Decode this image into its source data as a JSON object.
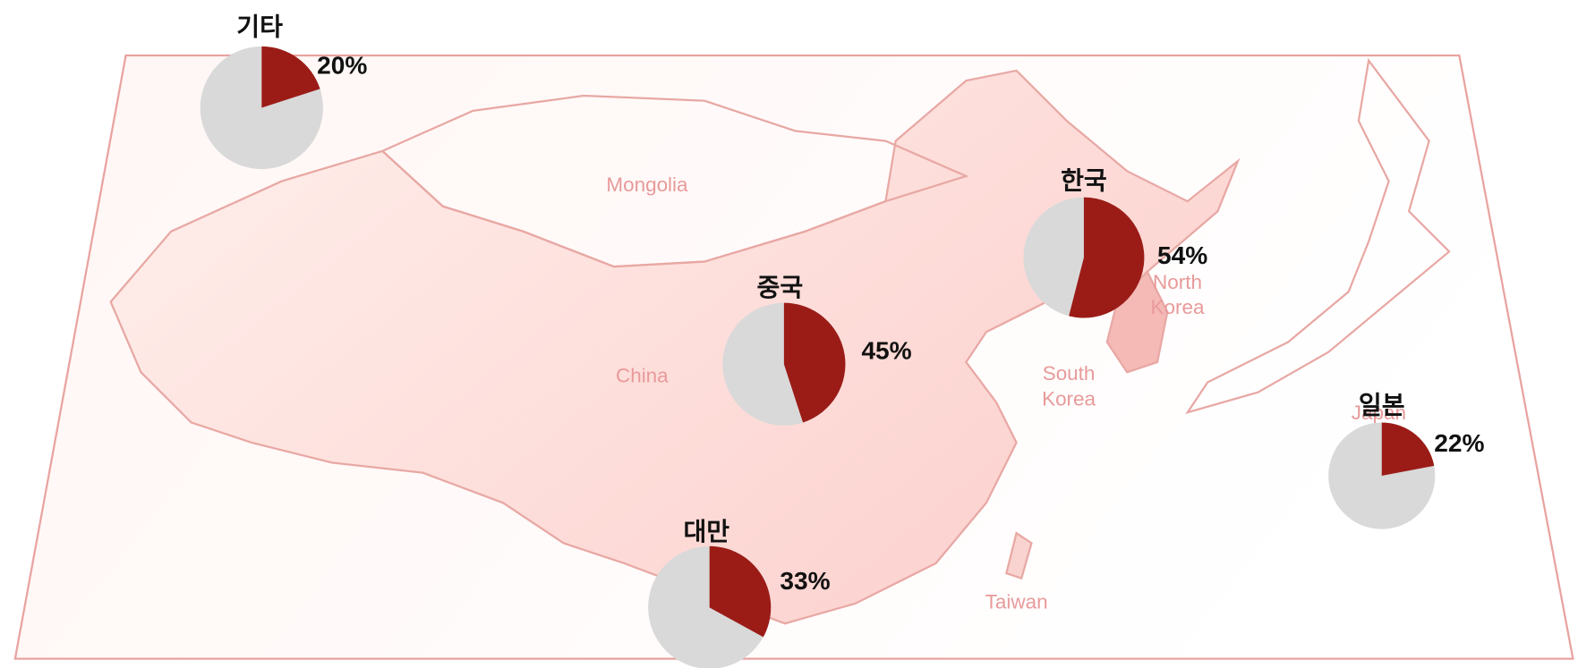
{
  "map": {
    "labels": [
      {
        "lines": [
          "Mongolia"
        ]
      },
      {
        "lines": [
          "China"
        ]
      },
      {
        "lines": [
          "North",
          "Korea"
        ]
      },
      {
        "lines": [
          "South",
          "Korea"
        ]
      },
      {
        "lines": [
          "Japan"
        ]
      },
      {
        "lines": [
          "Taiwan"
        ]
      }
    ]
  },
  "chart_data": {
    "type": "pie",
    "categories": [
      "기타",
      "중국",
      "한국",
      "일본",
      "대만"
    ],
    "values": [
      20,
      45,
      54,
      22,
      33
    ],
    "value_labels": [
      "20%",
      "45%",
      "54%",
      "22%",
      "33%"
    ],
    "color": "#9b1c17",
    "rest_color": "#d9d9d9"
  }
}
